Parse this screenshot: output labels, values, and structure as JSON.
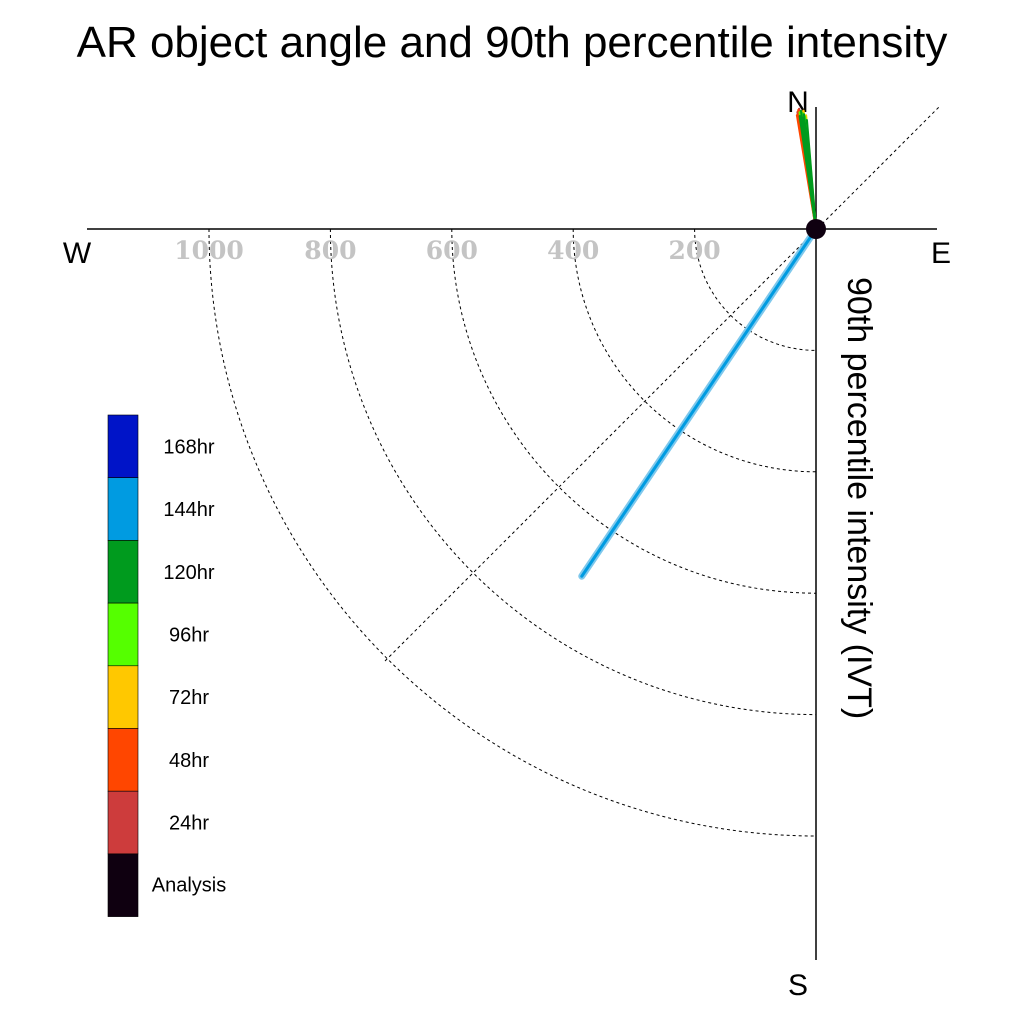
{
  "chart_data": {
    "type": "polar",
    "title": "AR object angle and 90th percentile intensity",
    "radial_label": "90th percentile intensity (IVT)",
    "compass": {
      "north": "N",
      "south": "S",
      "east": "E",
      "west": "W"
    },
    "rings": [
      200,
      400,
      600,
      800,
      1000
    ],
    "ring_labels": [
      "200",
      "400",
      "600",
      "800",
      "1000"
    ],
    "rmax": 1200,
    "legend": [
      {
        "label": "168hr",
        "color": "#0014c8"
      },
      {
        "label": "144hr",
        "color": "#009be1"
      },
      {
        "label": "120hr",
        "color": "#009b1e"
      },
      {
        "label": "96hr",
        "color": "#55ff00"
      },
      {
        "label": "72hr",
        "color": "#ffc800"
      },
      {
        "label": "48hr",
        "color": "#ff4600"
      },
      {
        "label": "24hr",
        "color": "#cd3c3c"
      },
      {
        "label": "Analysis",
        "color": "#0f0010"
      }
    ],
    "series": [
      {
        "lead": "24hr",
        "color": "#cd3c3c",
        "angles": [
          352,
          351
        ],
        "values": [
          200,
          195
        ]
      },
      {
        "lead": "48hr",
        "color": "#ff4600",
        "angles": [
          351.5,
          350.5,
          352
        ],
        "values": [
          198,
          190,
          192
        ]
      },
      {
        "lead": "72hr",
        "color": "#ffc800",
        "angles": [
          353,
          354,
          355,
          352.5
        ],
        "values": [
          195,
          196,
          188,
          190
        ]
      },
      {
        "lead": "96hr",
        "color": "#55ff00",
        "angles": [
          353.5,
          354.5,
          352
        ],
        "values": [
          192,
          186,
          194
        ]
      },
      {
        "lead": "120hr",
        "color": "#009b1e",
        "angles": [
          352.8,
          354,
          353.2,
          351.8,
          355.2
        ],
        "values": [
          196,
          190,
          184,
          188,
          180
        ]
      },
      {
        "lead": "144hr",
        "color": "#009be1",
        "angles": [
          214
        ],
        "values": [
          690
        ]
      }
    ],
    "analysis_value": 0
  }
}
